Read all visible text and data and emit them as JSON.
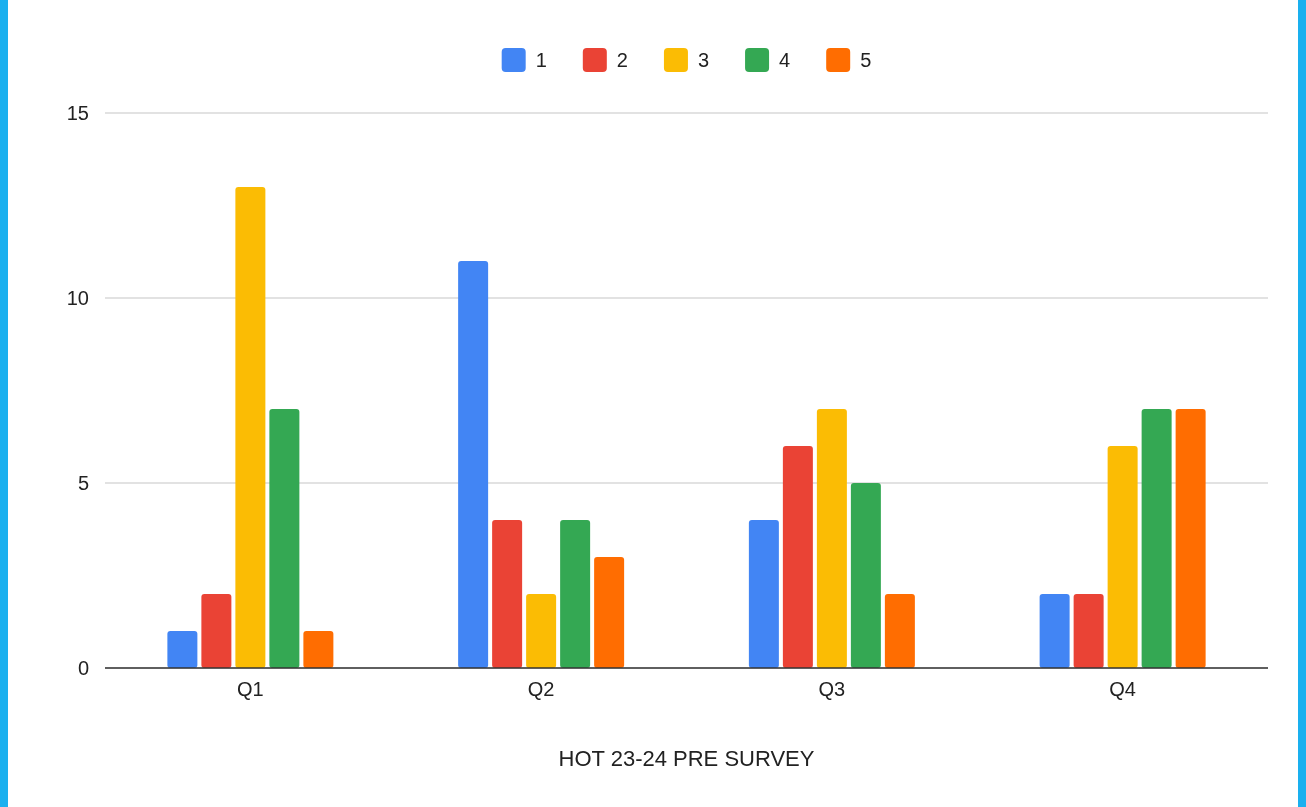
{
  "chart_data": {
    "type": "bar",
    "xlabel": "HOT 23-24 PRE SURVEY",
    "categories": [
      "Q1",
      "Q2",
      "Q3",
      "Q4"
    ],
    "series": [
      {
        "name": "1",
        "color": "#4285f4",
        "values": [
          1,
          11,
          4,
          2
        ]
      },
      {
        "name": "2",
        "color": "#ea4335",
        "values": [
          2,
          4,
          6,
          2
        ]
      },
      {
        "name": "3",
        "color": "#fbbc04",
        "values": [
          13,
          2,
          7,
          6
        ]
      },
      {
        "name": "4",
        "color": "#34a853",
        "values": [
          7,
          4,
          5,
          7
        ]
      },
      {
        "name": "5",
        "color": "#ff6d01",
        "values": [
          1,
          3,
          2,
          7
        ]
      }
    ],
    "ylim": [
      0,
      15
    ],
    "yticks": [
      0,
      5,
      10,
      15
    ],
    "grid": "y",
    "legend": "top"
  }
}
